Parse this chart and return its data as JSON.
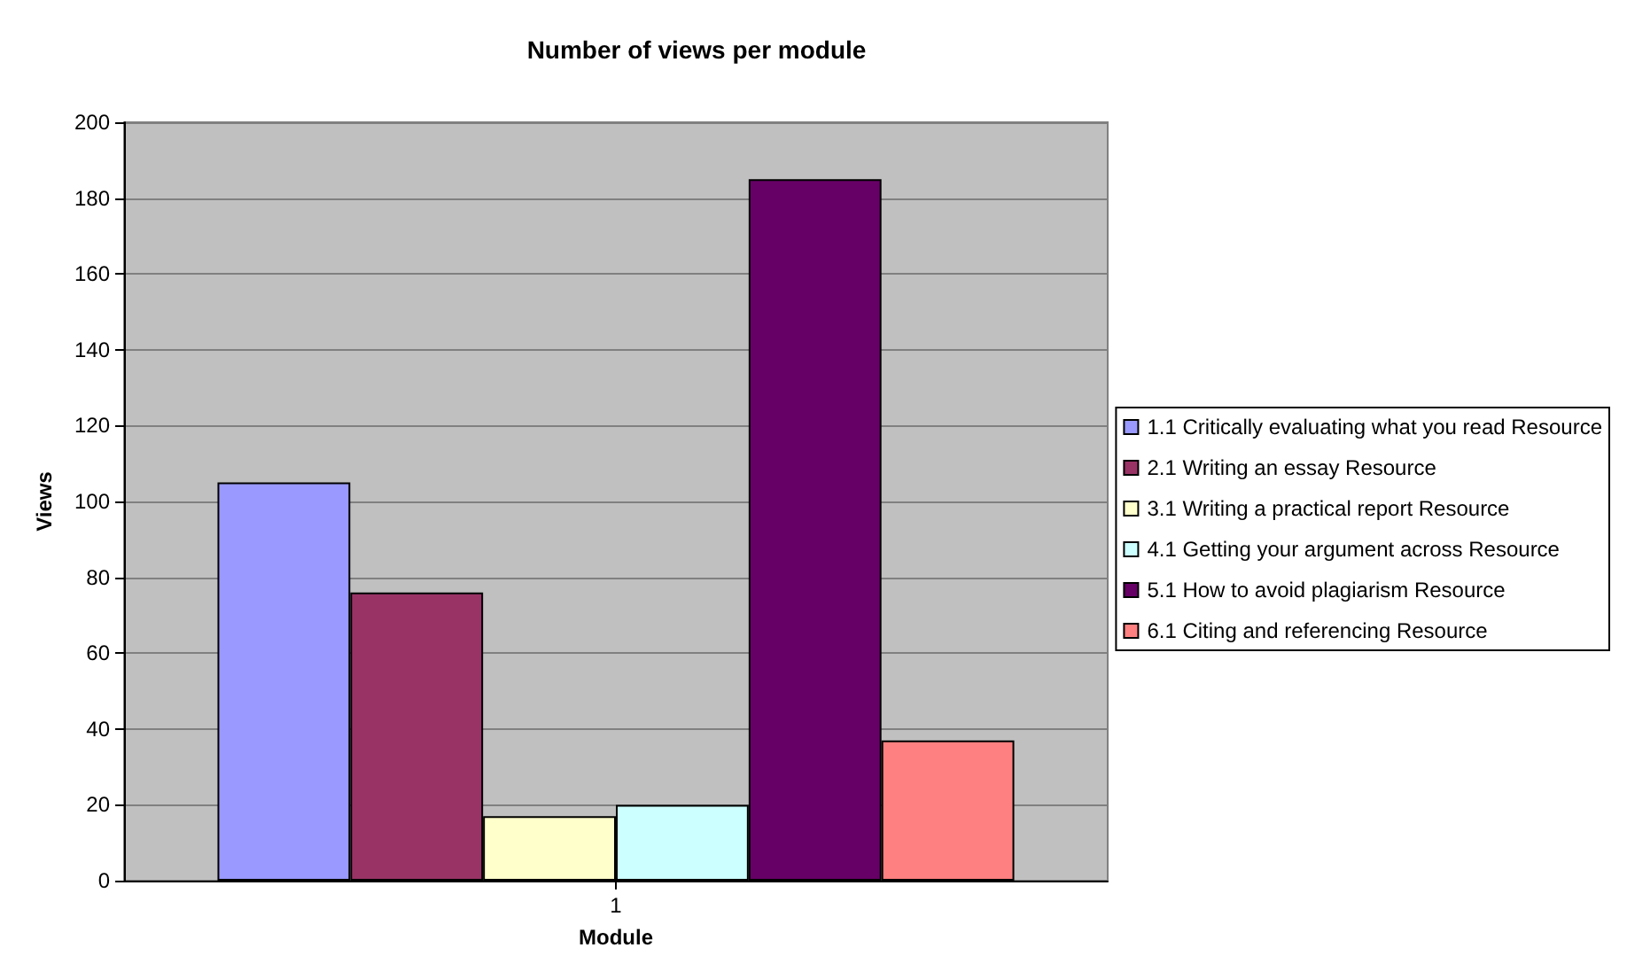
{
  "chart_data": {
    "type": "bar",
    "title": "Number of views per module",
    "xlabel": "Module",
    "ylabel": "Views",
    "categories": [
      "1"
    ],
    "series": [
      {
        "name": "1.1 Critically evaluating what you read Resource",
        "color": "#9999ff",
        "values": [
          105
        ]
      },
      {
        "name": "2.1 Writing an essay Resource",
        "color": "#993366",
        "values": [
          76
        ]
      },
      {
        "name": "3.1 Writing a practical report Resource",
        "color": "#ffffcc",
        "values": [
          17
        ]
      },
      {
        "name": "4.1 Getting your argument across Resource",
        "color": "#ccffff",
        "values": [
          20
        ]
      },
      {
        "name": "5.1 How to avoid plagiarism Resource",
        "color": "#660066",
        "values": [
          185
        ]
      },
      {
        "name": "6.1 Citing and referencing Resource",
        "color": "#ff8080",
        "values": [
          37
        ]
      }
    ],
    "ylim": [
      0,
      200
    ],
    "yticks": [
      0,
      20,
      40,
      60,
      80,
      100,
      120,
      140,
      160,
      180,
      200
    ],
    "grid": "y",
    "legend": "right"
  }
}
